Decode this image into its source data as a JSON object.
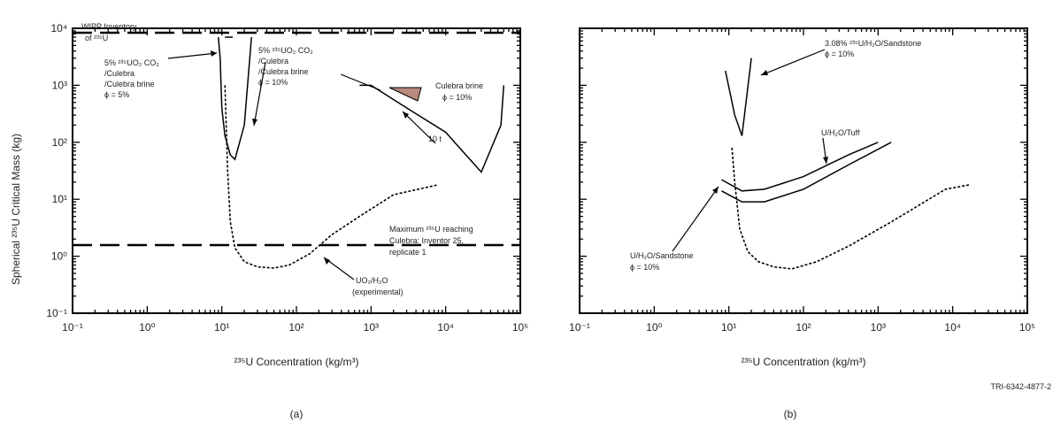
{
  "chart_data": [
    {
      "panel": "(a)",
      "type": "line",
      "xlabel": "²³⁵U Concentration (kg/m³)",
      "ylabel": "Spherical ²³⁵U Critical Mass (kg)",
      "x_scale": "log",
      "y_scale": "log",
      "xlim": [
        0.1,
        100000
      ],
      "ylim": [
        0.1,
        10000
      ],
      "x_ticks": [
        "10⁻¹",
        "10⁰",
        "10¹",
        "10²",
        "10³",
        "10⁴",
        "10⁵"
      ],
      "y_ticks": [
        "10⁻¹",
        "10⁰",
        "10¹",
        "10²",
        "10³",
        "10⁴"
      ],
      "reference_lines": [
        {
          "name": "WIPP Inventory of ²³⁵U",
          "y": 7000,
          "style": "dashed"
        },
        {
          "name": "Maximum ²³⁵U reaching Culebra: Inventor 25, replicate 1",
          "y": 1.7,
          "style": "dashed"
        }
      ],
      "series": [
        {
          "name": "UO₂/H₂O (experimental)",
          "style": "dash-dot",
          "x": [
            11,
            12,
            13,
            15,
            20,
            30,
            50,
            80,
            150,
            300,
            700,
            2000,
            8000
          ],
          "y": [
            1000,
            30,
            4,
            1.4,
            0.8,
            0.65,
            0.62,
            0.7,
            1.1,
            2.4,
            5,
            12,
            18
          ]
        },
        {
          "name": "5% ²³⁵UO₂ CO₂ /Culebra /Culebra brine ϕ = 5%",
          "style": "solid",
          "x": [
            9,
            9.5,
            10,
            11,
            13,
            15,
            20,
            25
          ],
          "y": [
            7000,
            3000,
            400,
            130,
            60,
            50,
            200,
            7000
          ]
        },
        {
          "name": "5% ²³⁵UO₂ CO₂ /Culebra /Culebra brine ϕ = 10%",
          "style": "solid",
          "x": [
            11,
            12,
            14
          ],
          "y": [
            7000,
            7000,
            7000
          ]
        },
        {
          "name": "Culebra brine ϕ = 10%",
          "style": "solid",
          "x": [
            700,
            1000,
            3000,
            10000,
            30000,
            55000,
            60000
          ],
          "y": [
            1000,
            1000,
            400,
            150,
            30,
            200,
            1000
          ]
        }
      ],
      "annotations": [
        "WIPP Inventory of ²³⁵U",
        "5% ²³⁵UO₂ CO₂ /Culebra /Culebra brine ϕ = 5%",
        "5% ²³⁵UO₂ CO₂ /Culebra /Culebra brine ϕ = 10%",
        "Culebra brine ϕ = 10%",
        "10 t",
        "Maximum ²³⁵U reaching Culebra Inventor 25, replicate 1",
        "UO₂/H₂O (experimental)"
      ]
    },
    {
      "panel": "(b)",
      "type": "line",
      "xlabel": "²³⁵U Concentration (kg/m³)",
      "x_scale": "log",
      "y_scale": "log",
      "xlim": [
        0.1,
        100000
      ],
      "ylim": [
        0.1,
        10000
      ],
      "x_ticks": [
        "10⁻¹",
        "10⁰",
        "10¹",
        "10²",
        "10³",
        "10⁴",
        "10⁵"
      ],
      "series": [
        {
          "name": "3.08% ²³⁵U/H₂O/Sandstone ϕ = 10%",
          "style": "solid",
          "x": [
            9,
            12,
            15,
            20
          ],
          "y": [
            1800,
            300,
            130,
            3000
          ]
        },
        {
          "name": "U/H₂O/Tuff",
          "style": "solid",
          "x": [
            8,
            15,
            30,
            100,
            400,
            1000
          ],
          "y": [
            22,
            14,
            15,
            25,
            60,
            100
          ]
        },
        {
          "name": "U/H₂O/Sandstone ϕ = 10%",
          "style": "solid",
          "x": [
            8,
            15,
            30,
            100,
            400,
            1500
          ],
          "y": [
            14,
            9,
            9,
            15,
            40,
            100
          ]
        },
        {
          "name": "UO₂/H₂O (experimental)",
          "style": "dash-dot",
          "x": [
            11,
            12,
            14,
            18,
            25,
            40,
            70,
            150,
            400,
            1500,
            8000,
            17000
          ],
          "y": [
            80,
            20,
            3,
            1.2,
            0.8,
            0.65,
            0.6,
            0.8,
            1.5,
            4,
            15,
            18
          ]
        }
      ],
      "annotations": [
        "3.08% ²³⁵U/H₂O/Sandstone ϕ = 10%",
        "U/H₂O/Tuff",
        "U/H₂O/Sandstone ϕ = 10%"
      ]
    }
  ],
  "footer": {
    "panel_a": "(a)",
    "panel_b": "(b)",
    "figure_id": "TRI-6342-4877-2"
  }
}
